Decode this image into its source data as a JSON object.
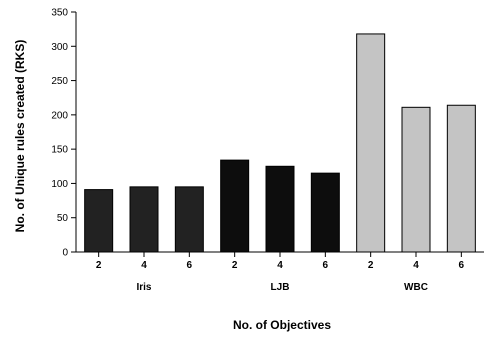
{
  "chart_data": {
    "type": "bar",
    "xlabel": "No. of Objectives",
    "ylabel": "No. of Unique rules created (RKS)",
    "ylim": [
      0,
      350
    ],
    "yticks": [
      0,
      50,
      100,
      150,
      200,
      250,
      300,
      350
    ],
    "grid": false,
    "legend": "none",
    "groups": [
      {
        "name": "Iris",
        "color": "#222222",
        "bars": [
          {
            "label": "2",
            "value": 91
          },
          {
            "label": "4",
            "value": 95
          },
          {
            "label": "6",
            "value": 95
          }
        ]
      },
      {
        "name": "LJB",
        "color": "#0d0d0d",
        "bars": [
          {
            "label": "2",
            "value": 134
          },
          {
            "label": "4",
            "value": 125
          },
          {
            "label": "6",
            "value": 115
          }
        ]
      },
      {
        "name": "WBC",
        "color": "#c4c4c4",
        "bars": [
          {
            "label": "2",
            "value": 318
          },
          {
            "label": "4",
            "value": 211
          },
          {
            "label": "6",
            "value": 214
          }
        ]
      }
    ]
  }
}
